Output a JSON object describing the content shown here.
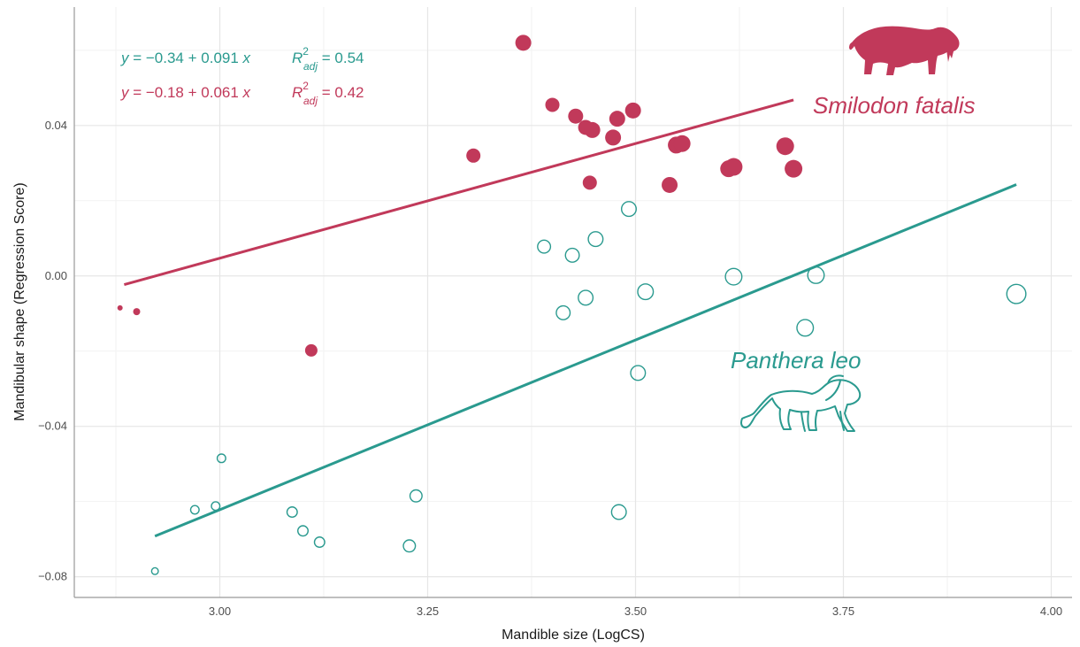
{
  "chart_data": {
    "type": "scatter",
    "xlabel": "Mandible size (LogCS)",
    "ylabel": "Mandibular shape (Regression Score)",
    "xlim": [
      2.825,
      4.025
    ],
    "ylim": [
      -0.0855,
      0.0715
    ],
    "x_ticks": [
      3.0,
      3.25,
      3.5,
      3.75,
      4.0
    ],
    "x_tick_labels": [
      "3.00",
      "3.25",
      "3.50",
      "3.75",
      "4.00"
    ],
    "y_ticks": [
      -0.08,
      -0.04,
      0.0,
      0.04
    ],
    "y_tick_labels": [
      "−0.08",
      "−0.04",
      "0.00",
      "0.04"
    ],
    "grid": true,
    "series": [
      {
        "name": "Smilodon fatalis",
        "color": "#c1395a",
        "marker": "filled-circle",
        "x": [
          2.88,
          2.9,
          3.11,
          3.305,
          3.365,
          3.4,
          3.428,
          3.44,
          3.448,
          3.473,
          3.478,
          3.497,
          3.445,
          3.541,
          3.549,
          3.556,
          3.612,
          3.618,
          3.68,
          3.69
        ],
        "y": [
          -0.0085,
          -0.0095,
          -0.0198,
          0.032,
          0.062,
          0.0455,
          0.0425,
          0.0395,
          0.0388,
          0.0368,
          0.0418,
          0.044,
          0.0248,
          0.0242,
          0.0348,
          0.0352,
          0.0285,
          0.029,
          0.0345,
          0.0285
        ],
        "size": [
          3,
          4,
          7,
          8,
          9,
          8,
          8.5,
          8.5,
          9,
          9,
          9,
          9,
          8,
          9,
          9.5,
          9.5,
          9.5,
          10,
          10,
          10
        ],
        "fit": {
          "x": [
            2.885,
            3.69
          ],
          "y": [
            -0.0023,
            0.0468
          ]
        }
      },
      {
        "name": "Panthera leo",
        "color": "#2a9a8f",
        "marker": "open-circle",
        "x": [
          2.922,
          2.97,
          2.995,
          3.002,
          3.087,
          3.1,
          3.12,
          3.228,
          3.236,
          3.39,
          3.413,
          3.424,
          3.44,
          3.452,
          3.48,
          3.492,
          3.503,
          3.512,
          3.618,
          3.704,
          3.717,
          3.958
        ],
        "y": [
          -0.0785,
          -0.0622,
          -0.0612,
          -0.0485,
          -0.0628,
          -0.0678,
          -0.0708,
          -0.0718,
          -0.0585,
          0.0078,
          -0.0098,
          0.0055,
          -0.0058,
          0.0098,
          -0.0628,
          0.0178,
          -0.0258,
          -0.0042,
          -0.0002,
          -0.0138,
          0.0002,
          -0.0048
        ],
        "size": [
          4.5,
          5.5,
          5.5,
          5.5,
          6.5,
          6.5,
          6.5,
          7.5,
          7.5,
          8,
          8.5,
          8.5,
          9,
          9,
          9,
          9,
          9,
          9.5,
          10,
          10,
          10,
          11.5
        ],
        "fit": {
          "x": [
            2.922,
            3.958
          ],
          "y": [
            -0.0692,
            0.0243
          ]
        }
      }
    ],
    "annotations": {
      "teal_equation": {
        "y_label": "y",
        "eq_body": " = −0.34 + 0.091 ",
        "x_label": "x",
        "r_label": "R",
        "r_sup": "2",
        "r_sub": "adj",
        "r_value": " = 0.54"
      },
      "red_equation": {
        "y_label": "y",
        "eq_body": " = −0.18 + 0.061 ",
        "x_label": "x",
        "r_label": "R",
        "r_sup": "2",
        "r_sub": "adj",
        "r_value": " = 0.42"
      },
      "smilodon_label": "Smilodon fatalis",
      "leo_label": "Panthera leo"
    }
  }
}
